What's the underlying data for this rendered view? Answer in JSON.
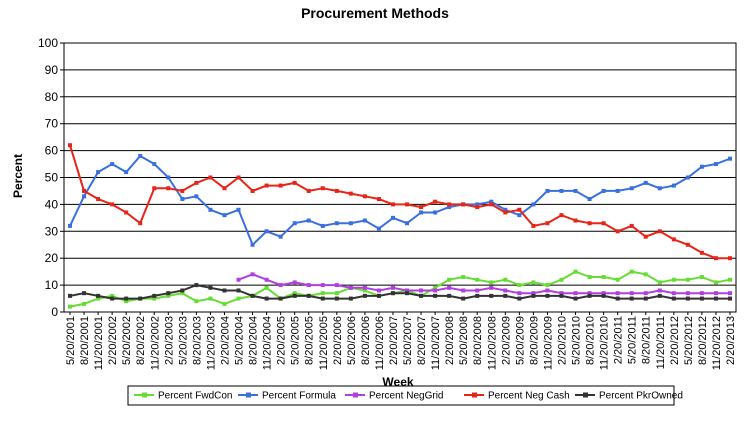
{
  "chart_data": {
    "type": "line",
    "title": "Procurement Methods",
    "xlabel": "Week",
    "ylabel": "Percent",
    "ylim": [
      0,
      100
    ],
    "yticks": [
      0,
      10,
      20,
      30,
      40,
      50,
      60,
      70,
      80,
      90,
      100
    ],
    "grid": true,
    "legend_position": "bottom",
    "x": [
      "5/20/2001",
      "8/20/2001",
      "11/20/2001",
      "2/20/2002",
      "5/20/2002",
      "8/20/2002",
      "11/20/2002",
      "2/20/2003",
      "5/20/2003",
      "8/20/2003",
      "11/20/2003",
      "2/20/2004",
      "5/20/2004",
      "8/20/2004",
      "11/20/2004",
      "2/20/2005",
      "5/20/2005",
      "8/20/2005",
      "11/20/2005",
      "2/20/2006",
      "5/20/2006",
      "8/20/2006",
      "11/20/2006",
      "2/20/2007",
      "5/20/2007",
      "8/20/2007",
      "11/20/2007",
      "2/20/2008",
      "5/20/2008",
      "8/20/2008",
      "11/20/2008",
      "2/20/2009",
      "5/20/2009",
      "8/20/2009",
      "11/20/2009",
      "2/20/2010",
      "5/20/2010",
      "8/20/2010",
      "11/20/2010",
      "2/20/2011",
      "5/20/2011",
      "8/20/2011",
      "11/20/2011",
      "2/20/2012",
      "5/20/2012",
      "8/20/2012",
      "11/20/2012",
      "2/20/2013"
    ],
    "series": [
      {
        "name": "Percent FwdCon",
        "color": "#66dd33",
        "values": [
          2,
          3,
          5,
          6,
          4,
          5,
          5,
          6,
          7,
          4,
          5,
          3,
          5,
          6,
          9,
          5,
          7,
          6,
          7,
          7,
          9,
          8,
          6,
          7,
          8,
          6,
          9,
          12,
          13,
          12,
          11,
          12,
          10,
          11,
          10,
          12,
          15,
          13,
          13,
          12,
          15,
          14,
          11,
          12,
          12,
          13,
          11,
          12
        ]
      },
      {
        "name": "Percent Formula",
        "color": "#3a6fe0",
        "values": [
          32,
          43,
          52,
          55,
          52,
          58,
          55,
          50,
          42,
          43,
          38,
          36,
          38,
          25,
          30,
          28,
          33,
          34,
          32,
          33,
          33,
          34,
          31,
          35,
          33,
          37,
          37,
          39,
          40,
          40,
          41,
          38,
          36,
          40,
          45,
          45,
          45,
          42,
          45,
          45,
          46,
          48,
          46,
          47,
          50,
          54,
          55,
          57
        ]
      },
      {
        "name": "Percent NegGrid",
        "color": "#b03ee0",
        "values": [
          null,
          null,
          null,
          null,
          null,
          null,
          null,
          null,
          null,
          null,
          null,
          null,
          12,
          14,
          12,
          10,
          11,
          10,
          10,
          10,
          9,
          9,
          8,
          9,
          8,
          8,
          8,
          9,
          8,
          8,
          9,
          8,
          7,
          7,
          8,
          7,
          7,
          7,
          7,
          7,
          7,
          7,
          8,
          7,
          7,
          7,
          7,
          7
        ]
      },
      {
        "name": "Percent Neg Cash",
        "color": "#e82418",
        "values": [
          62,
          45,
          42,
          40,
          37,
          33,
          46,
          46,
          45,
          48,
          50,
          46,
          50,
          45,
          47,
          47,
          48,
          45,
          46,
          45,
          44,
          43,
          42,
          40,
          40,
          39,
          41,
          40,
          40,
          39,
          40,
          37,
          38,
          32,
          33,
          36,
          34,
          33,
          33,
          30,
          32,
          28,
          30,
          27,
          25,
          22,
          20,
          20
        ]
      },
      {
        "name": "Percent PkrOwned",
        "color": "#333333",
        "values": [
          6,
          7,
          6,
          5,
          5,
          5,
          6,
          7,
          8,
          10,
          9,
          8,
          8,
          6,
          5,
          5,
          6,
          6,
          5,
          5,
          5,
          6,
          6,
          7,
          7,
          6,
          6,
          6,
          5,
          6,
          6,
          6,
          5,
          6,
          6,
          6,
          5,
          6,
          6,
          5,
          5,
          5,
          6,
          5,
          5,
          5,
          5,
          5
        ]
      }
    ]
  }
}
